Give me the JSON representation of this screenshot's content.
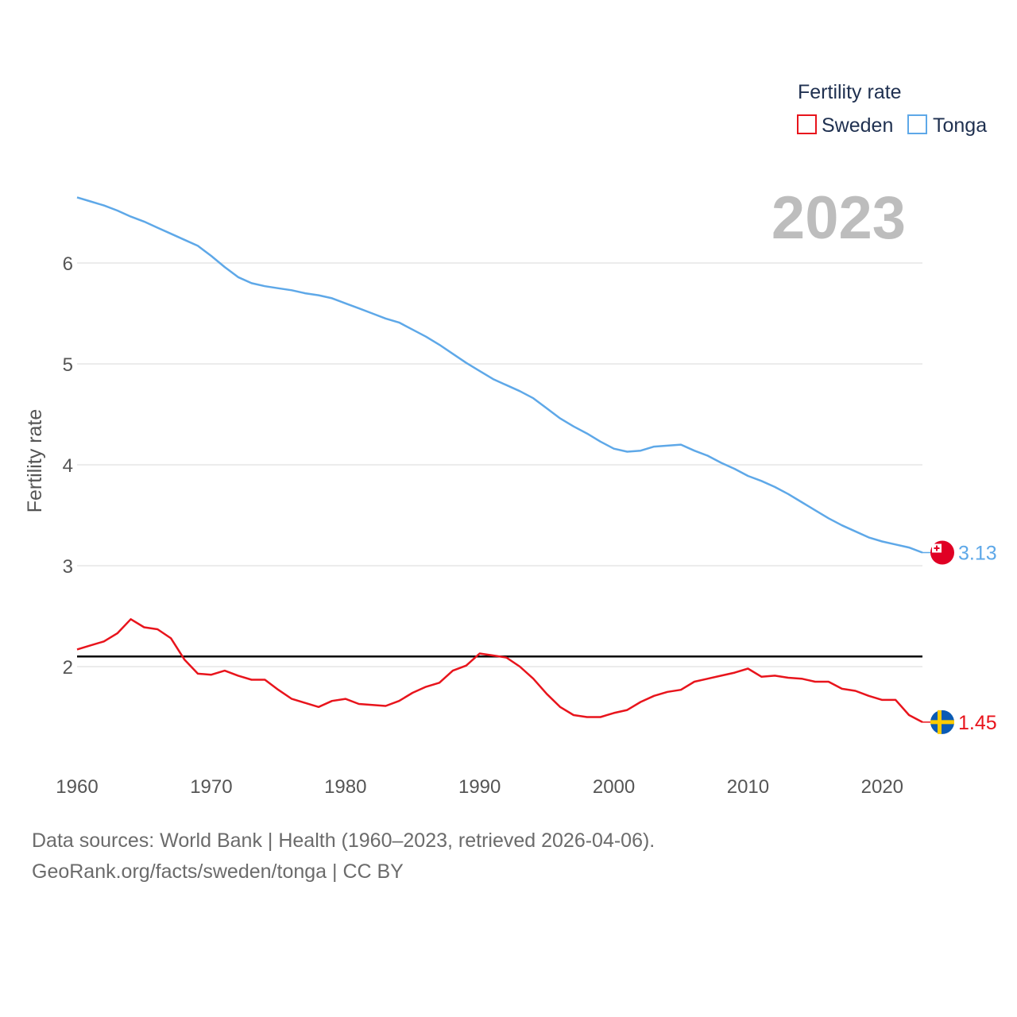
{
  "legend": {
    "title": "Fertility rate",
    "items": [
      {
        "label": "Sweden",
        "color": "#e8141c"
      },
      {
        "label": "Tonga",
        "color": "#5ea8e8"
      }
    ]
  },
  "year_label": "2023",
  "source": {
    "line1": "Data sources: World Bank | Health (1960–2023, retrieved 2026-04-06).",
    "line2": "GeoRank.org/facts/sweden/tonga | CC BY"
  },
  "chart_data": {
    "type": "line",
    "title": "Fertility rate",
    "xlabel": "",
    "ylabel": "Fertility rate",
    "xlim": [
      1960,
      2023
    ],
    "ylim": [
      1.0,
      7.0
    ],
    "x_ticks": [
      1960,
      1970,
      1980,
      1990,
      2000,
      2010,
      2020
    ],
    "y_ticks": [
      2,
      3,
      4,
      5,
      6
    ],
    "grid": true,
    "reference_line": {
      "y": 2.1,
      "color": "#000000"
    },
    "x": [
      1960,
      1961,
      1962,
      1963,
      1964,
      1965,
      1966,
      1967,
      1968,
      1969,
      1970,
      1971,
      1972,
      1973,
      1974,
      1975,
      1976,
      1977,
      1978,
      1979,
      1980,
      1981,
      1982,
      1983,
      1984,
      1985,
      1986,
      1987,
      1988,
      1989,
      1990,
      1991,
      1992,
      1993,
      1994,
      1995,
      1996,
      1997,
      1998,
      1999,
      2000,
      2001,
      2002,
      2003,
      2004,
      2005,
      2006,
      2007,
      2008,
      2009,
      2010,
      2011,
      2012,
      2013,
      2014,
      2015,
      2016,
      2017,
      2018,
      2019,
      2020,
      2021,
      2022,
      2023
    ],
    "series": [
      {
        "name": "Sweden",
        "color": "#e8141c",
        "end_label": "1.45",
        "values": [
          2.17,
          2.21,
          2.25,
          2.33,
          2.47,
          2.39,
          2.37,
          2.28,
          2.07,
          1.93,
          1.92,
          1.96,
          1.91,
          1.87,
          1.87,
          1.77,
          1.68,
          1.64,
          1.6,
          1.66,
          1.68,
          1.63,
          1.62,
          1.61,
          1.66,
          1.74,
          1.8,
          1.84,
          1.96,
          2.01,
          2.13,
          2.11,
          2.09,
          2.0,
          1.88,
          1.73,
          1.6,
          1.52,
          1.5,
          1.5,
          1.54,
          1.57,
          1.65,
          1.71,
          1.75,
          1.77,
          1.85,
          1.88,
          1.91,
          1.94,
          1.98,
          1.9,
          1.91,
          1.89,
          1.88,
          1.85,
          1.85,
          1.78,
          1.76,
          1.71,
          1.67,
          1.67,
          1.52,
          1.45
        ]
      },
      {
        "name": "Tonga",
        "color": "#5ea8e8",
        "end_label": "3.13",
        "values": [
          6.65,
          6.61,
          6.57,
          6.52,
          6.46,
          6.41,
          6.35,
          6.29,
          6.23,
          6.17,
          6.07,
          5.96,
          5.86,
          5.8,
          5.77,
          5.75,
          5.73,
          5.7,
          5.68,
          5.65,
          5.6,
          5.55,
          5.5,
          5.45,
          5.41,
          5.34,
          5.27,
          5.19,
          5.1,
          5.01,
          4.93,
          4.85,
          4.79,
          4.73,
          4.66,
          4.56,
          4.46,
          4.38,
          4.31,
          4.23,
          4.16,
          4.13,
          4.14,
          4.18,
          4.19,
          4.2,
          4.14,
          4.09,
          4.02,
          3.96,
          3.89,
          3.84,
          3.78,
          3.71,
          3.63,
          3.55,
          3.47,
          3.4,
          3.34,
          3.28,
          3.24,
          3.21,
          3.18,
          3.13
        ]
      }
    ]
  }
}
